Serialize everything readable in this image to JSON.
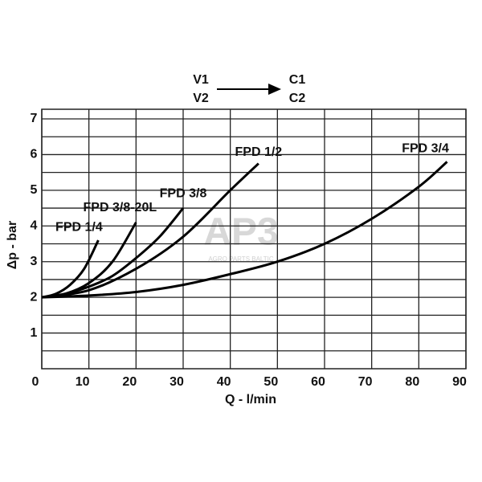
{
  "chart_data": {
    "type": "line",
    "annotations": {
      "inputs": [
        "V1",
        "V2"
      ],
      "outputs": [
        "C1",
        "C2"
      ]
    },
    "watermark": {
      "logo": "AP3",
      "text": "AGRO PARTS BALTIC"
    },
    "x_label": "Q - l/min",
    "y_label": "Δp - bar",
    "xlim": [
      0,
      90
    ],
    "ylim": [
      0,
      7
    ],
    "xticks": [
      0,
      10,
      20,
      30,
      40,
      50,
      60,
      70,
      80,
      90
    ],
    "yticks": [
      1,
      2,
      3,
      4,
      5,
      6,
      7
    ],
    "y_minor_grid": [
      0.5,
      1.5,
      2.5,
      3.5,
      4.5,
      5.5,
      6.5
    ],
    "grid": true,
    "series": [
      {
        "name": "FPD 1/4",
        "color": "#000000",
        "x": [
          0,
          3,
          6,
          9,
          12
        ],
        "values": [
          2,
          2.1,
          2.35,
          2.8,
          3.6
        ]
      },
      {
        "name": "FPD 3/8-20L",
        "color": "#000000",
        "x": [
          0,
          5,
          10,
          15,
          20
        ],
        "values": [
          2,
          2.1,
          2.4,
          3.0,
          4.1
        ]
      },
      {
        "name": "FPD 3/8",
        "color": "#000000",
        "x": [
          0,
          5,
          10,
          15,
          20,
          25,
          30
        ],
        "values": [
          2,
          2.1,
          2.3,
          2.6,
          3.1,
          3.7,
          4.5
        ]
      },
      {
        "name": "FPD 1/2",
        "color": "#000000",
        "x": [
          0,
          10,
          20,
          30,
          40,
          46
        ],
        "values": [
          2,
          2.2,
          2.8,
          3.7,
          5.0,
          5.75
        ]
      },
      {
        "name": "FPD 3/4",
        "color": "#000000",
        "x": [
          0,
          10,
          20,
          30,
          40,
          50,
          60,
          70,
          80,
          86
        ],
        "values": [
          2,
          2.05,
          2.15,
          2.35,
          2.65,
          3.0,
          3.5,
          4.2,
          5.1,
          5.8
        ]
      }
    ]
  }
}
